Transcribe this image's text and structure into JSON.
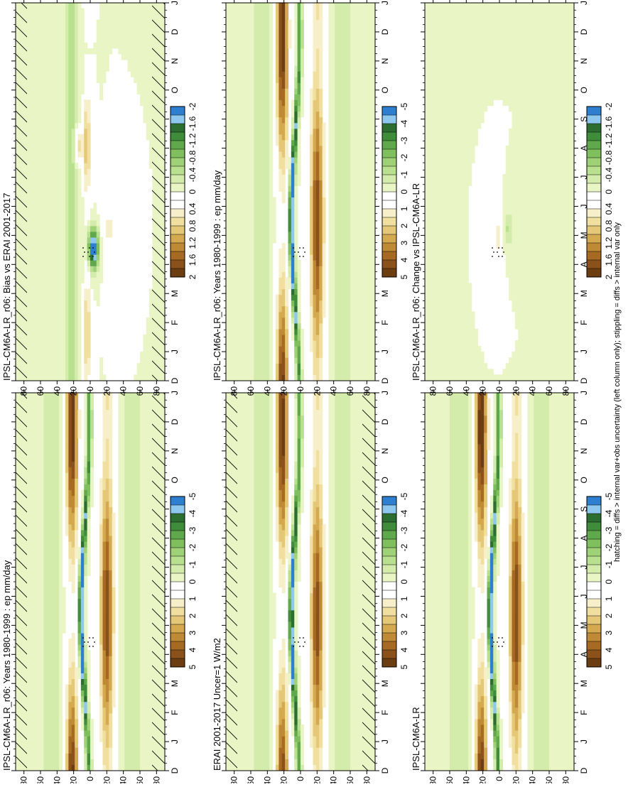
{
  "figure": {
    "footnote": "hatching = diffs > internal var+obs uncertainty (left column only); stippling = diffs > internal var only"
  },
  "palettes": {
    "field": [
      "#6b3d10",
      "#8a521a",
      "#a76a22",
      "#bf8a35",
      "#d4a94f",
      "#e5c778",
      "#f1df9f",
      "#f7efca",
      "#ffffff",
      "#ffffff",
      "#eaf5c6",
      "#d3ecab",
      "#b9e08e",
      "#9fd176",
      "#7fbf5e",
      "#5fa84b",
      "#3f8c3a",
      "#2c6e30",
      "#8fc8ee",
      "#2f7fd0"
    ],
    "diff": [
      "#6b3d10",
      "#8a521a",
      "#a76a22",
      "#bf8a35",
      "#d4a94f",
      "#e5c778",
      "#f1df9f",
      "#f7efca",
      "#ffffff",
      "#ffffff",
      "#eaf5c6",
      "#d3ecab",
      "#b9e08e",
      "#9fd176",
      "#7fbf5e",
      "#5fa84b",
      "#3f8c3a",
      "#2c6e30",
      "#8fc8ee",
      "#2f7fd0"
    ]
  },
  "chart_data": [
    {
      "id": "top-left",
      "type": "heatmap",
      "title": "IPSL-CM6A-LR_r06: Years 1980-1999 : ep mm/day",
      "x": [
        "D",
        "J",
        "F",
        "M",
        "A",
        "M",
        "J",
        "J",
        "A",
        "S",
        "O",
        "N",
        "D",
        "J"
      ],
      "y": [
        "80",
        "60",
        "40",
        "20",
        "0",
        "20",
        "40",
        "60",
        "80"
      ],
      "colorbar": {
        "labels": [
          "5",
          "4",
          "3",
          "2",
          "1",
          "0",
          "-1",
          "-2",
          "-3",
          "-4",
          "-5"
        ],
        "range": [
          5,
          -5
        ],
        "palette": "field"
      },
      "hatching": true,
      "stippling": true
    },
    {
      "id": "top-right",
      "type": "heatmap",
      "title": "IPSL-CM6A-LR_r06: Years 1980-1999 : ep mm/day",
      "x": [
        "D",
        "J",
        "F",
        "M",
        "A",
        "M",
        "J",
        "J",
        "A",
        "S",
        "O",
        "N",
        "D",
        "J"
      ],
      "y": [
        "80",
        "60",
        "40",
        "20",
        "0",
        "20",
        "40",
        "60",
        "80"
      ],
      "colorbar": {
        "labels": [
          "5",
          "4",
          "3",
          "2",
          "1",
          "0",
          "-1",
          "-2",
          "-3",
          "-4",
          "-5"
        ],
        "range": [
          5,
          -5
        ],
        "palette": "field"
      },
      "hatching": false,
      "stippling": true
    },
    {
      "id": "mid-left",
      "type": "heatmap",
      "title": "ERAI 2001-2017 Uncer=1 W/m2",
      "x": [
        "D",
        "J",
        "F",
        "M",
        "A",
        "M",
        "J",
        "J",
        "A",
        "S",
        "O",
        "N",
        "D",
        "J"
      ],
      "y": [
        "80",
        "60",
        "40",
        "20",
        "0",
        "20",
        "40",
        "60",
        "80"
      ],
      "colorbar": {
        "labels": [
          "5",
          "4",
          "3",
          "2",
          "1",
          "0",
          "-1",
          "-2",
          "-3",
          "-4",
          "-5"
        ],
        "range": [
          5,
          -5
        ],
        "palette": "field"
      },
      "hatching": true,
      "stippling": true
    },
    {
      "id": "mid-right",
      "type": "heatmap",
      "title": "IPSL-CM6A-LR",
      "x": [
        "D",
        "J",
        "F",
        "M",
        "A",
        "M",
        "J",
        "J",
        "A",
        "S",
        "O",
        "N",
        "D",
        "J"
      ],
      "y": [
        "80",
        "60",
        "40",
        "20",
        "0",
        "20",
        "40",
        "60",
        "80"
      ],
      "colorbar": {
        "labels": [
          "5",
          "4",
          "3",
          "2",
          "1",
          "0",
          "-1",
          "-2",
          "-3",
          "-4",
          "-5"
        ],
        "range": [
          5,
          -5
        ],
        "palette": "field"
      },
      "hatching": false,
      "stippling": true
    },
    {
      "id": "bottom-left",
      "type": "heatmap",
      "title": "IPSL-CM6A-LR_r06: Bias vs ERAI 2001-2017",
      "x": [
        "D",
        "J",
        "F",
        "M",
        "A",
        "M",
        "J",
        "J",
        "A",
        "S",
        "O",
        "N",
        "D",
        "J"
      ],
      "y": [
        "80",
        "60",
        "40",
        "20",
        "0",
        "20",
        "40",
        "60",
        "80"
      ],
      "colorbar": {
        "labels": [
          "2",
          "1.6",
          "1.2",
          "0.8",
          "0.4",
          "0",
          "-0.4",
          "-0.8",
          "-1.2",
          "-1.6",
          "-2"
        ],
        "range": [
          2,
          -2
        ],
        "palette": "diff"
      },
      "hatching": true,
      "stippling": true
    },
    {
      "id": "bottom-right",
      "type": "heatmap",
      "title": "IPSL-CM6A-LR_r06: Change vs IPSL-CM6A-LR",
      "x": [
        "D",
        "J",
        "F",
        "M",
        "A",
        "M",
        "J",
        "J",
        "A",
        "S",
        "O",
        "N",
        "D",
        "J"
      ],
      "y": [
        "80",
        "60",
        "40",
        "20",
        "0",
        "20",
        "40",
        "60",
        "80"
      ],
      "colorbar": {
        "labels": [
          "2",
          "1.6",
          "1.2",
          "0.8",
          "0.4",
          "0",
          "-0.4",
          "-0.8",
          "-1.2",
          "-1.6",
          "-2"
        ],
        "range": [
          2,
          -2
        ],
        "palette": "diff"
      },
      "hatching": false,
      "stippling": true
    }
  ]
}
